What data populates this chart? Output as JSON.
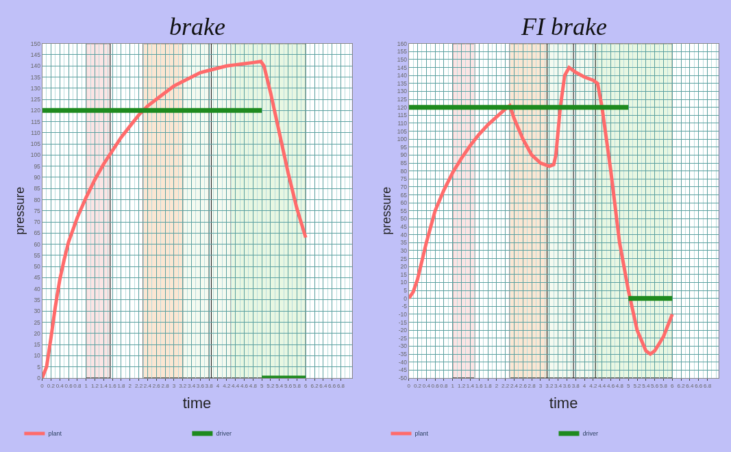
{
  "chart_data": [
    {
      "type": "line",
      "title": "brake",
      "xlabel": "time",
      "ylabel": "pressure",
      "xlim": [
        0,
        7.05
      ],
      "ylim": [
        0,
        150
      ],
      "grid": true,
      "legend": "bottom",
      "xticks": [
        0,
        0.2,
        0.4,
        0.6,
        0.8,
        1,
        1.2,
        1.4,
        1.6,
        1.8,
        2,
        2.2,
        2.4,
        2.6,
        2.8,
        3,
        3.2,
        3.4,
        3.6,
        3.8,
        4,
        4.2,
        4.4,
        4.6,
        4.8,
        5,
        5.2,
        5.4,
        5.6,
        5.8,
        6,
        6.2,
        6.4,
        6.6,
        6.8
      ],
      "yticks": [
        0,
        5,
        10,
        15,
        20,
        25,
        30,
        35,
        40,
        45,
        50,
        55,
        60,
        65,
        70,
        75,
        80,
        85,
        90,
        95,
        100,
        105,
        110,
        115,
        120,
        125,
        130,
        135,
        140,
        145,
        150
      ],
      "bands": [
        {
          "axis": "x",
          "from": 1.0,
          "to": 1.55,
          "color": "#fbe4e4"
        },
        {
          "axis": "x",
          "from": 2.3,
          "to": 3.35,
          "color": "#fbe6d2"
        },
        {
          "axis": "x",
          "from": 3.2,
          "to": 5.25,
          "color": "#f4faf0"
        },
        {
          "axis": "x",
          "from": 3.8,
          "to": 3.85,
          "color": "#ffffff"
        },
        {
          "axis": "x",
          "from": 4.3,
          "to": 6.0,
          "color": "#e8f7e2"
        }
      ],
      "series": [
        {
          "name": "plant",
          "color": "#ff6b6b",
          "x": [
            0,
            0.1,
            0.2,
            0.3,
            0.4,
            0.5,
            0.6,
            0.8,
            1.0,
            1.2,
            1.4,
            1.6,
            1.8,
            2.0,
            2.2,
            2.4,
            2.6,
            2.8,
            3.0,
            3.2,
            3.4,
            3.6,
            3.8,
            4.0,
            4.2,
            4.4,
            4.6,
            4.8,
            4.98,
            5.05,
            5.2,
            5.4,
            5.6,
            5.8,
            6.0
          ],
          "values": [
            0,
            5,
            18,
            32,
            44,
            53,
            61,
            72,
            81,
            89,
            96,
            102,
            108,
            113,
            118,
            122,
            125,
            128,
            131,
            133,
            135,
            137,
            138,
            139,
            140,
            140.5,
            141,
            141.5,
            142,
            140,
            128,
            110,
            92,
            76,
            63
          ]
        },
        {
          "name": "driver",
          "color": "#1e8a1e",
          "x": [
            0,
            5,
            null,
            5,
            6
          ],
          "values": [
            120,
            120,
            null,
            0,
            0
          ]
        }
      ]
    },
    {
      "type": "line",
      "title": "FI brake",
      "xlabel": "time",
      "ylabel": "pressure",
      "xlim": [
        0,
        7.05
      ],
      "ylim": [
        -50,
        160
      ],
      "grid": true,
      "legend": "bottom",
      "xticks": [
        0,
        0.2,
        0.4,
        0.6,
        0.8,
        1,
        1.2,
        1.4,
        1.6,
        1.8,
        2,
        2.2,
        2.4,
        2.6,
        2.8,
        3,
        3.2,
        3.4,
        3.6,
        3.8,
        4,
        4.2,
        4.4,
        4.6,
        4.8,
        5,
        5.2,
        5.4,
        5.6,
        5.8,
        6,
        6.2,
        6.4,
        6.6,
        6.8
      ],
      "yticks": [
        -50,
        -45,
        -40,
        -35,
        -30,
        -25,
        -20,
        -15,
        -10,
        -5,
        0,
        5,
        10,
        15,
        20,
        25,
        30,
        35,
        40,
        45,
        50,
        55,
        60,
        65,
        70,
        75,
        80,
        85,
        90,
        95,
        100,
        105,
        110,
        115,
        120,
        125,
        130,
        135,
        140,
        145,
        150,
        155,
        160
      ],
      "bands": [
        {
          "axis": "x",
          "from": 1.0,
          "to": 1.5,
          "color": "#fbe4e4"
        },
        {
          "axis": "x",
          "from": 2.3,
          "to": 3.3,
          "color": "#fbe6d2"
        },
        {
          "axis": "x",
          "from": 3.15,
          "to": 5.2,
          "color": "#f4faf0"
        },
        {
          "axis": "x",
          "from": 3.75,
          "to": 3.8,
          "color": "#ffffff"
        },
        {
          "axis": "x",
          "from": 4.25,
          "to": 6.0,
          "color": "#e8f7e2"
        }
      ],
      "series": [
        {
          "name": "plant",
          "color": "#ff6b6b",
          "x": [
            0,
            0.1,
            0.2,
            0.4,
            0.6,
            0.8,
            1.0,
            1.2,
            1.4,
            1.6,
            1.8,
            2.0,
            2.2,
            2.3,
            2.4,
            2.6,
            2.8,
            3.0,
            3.2,
            3.3,
            3.35,
            3.45,
            3.55,
            3.65,
            3.8,
            4.0,
            4.2,
            4.3,
            4.4,
            4.6,
            4.8,
            5.0,
            5.2,
            5.4,
            5.5,
            5.6,
            5.8,
            6.0
          ],
          "values": [
            0,
            4,
            12,
            35,
            55,
            68,
            79,
            88,
            96,
            103,
            109,
            114,
            119,
            121,
            113,
            100,
            90,
            85,
            83,
            84,
            90,
            120,
            140,
            145,
            142,
            139,
            137,
            135,
            120,
            80,
            35,
            5,
            -20,
            -33,
            -35,
            -33,
            -24,
            -10
          ]
        },
        {
          "name": "driver",
          "color": "#1e8a1e",
          "x": [
            0,
            5,
            null,
            5,
            6
          ],
          "values": [
            120,
            120,
            null,
            0,
            0
          ]
        }
      ]
    }
  ]
}
